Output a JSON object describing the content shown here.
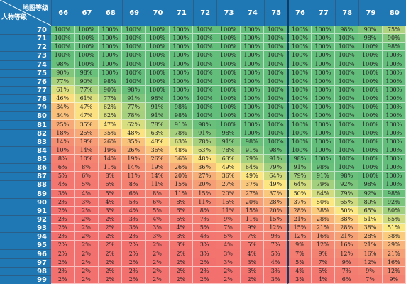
{
  "corner": {
    "col_label": "地图等级",
    "row_label": "人物等级"
  },
  "columns": [
    "66",
    "67",
    "68",
    "69",
    "70",
    "71",
    "72",
    "73",
    "74",
    "75",
    "76",
    "77",
    "78",
    "79",
    "80"
  ],
  "rows": [
    {
      "level": "70",
      "values": [
        "100%",
        "100%",
        "100%",
        "100%",
        "100%",
        "100%",
        "100%",
        "100%",
        "100%",
        "100%",
        "100%",
        "100%",
        "98%",
        "90%",
        "75%"
      ]
    },
    {
      "level": "71",
      "values": [
        "100%",
        "100%",
        "100%",
        "100%",
        "100%",
        "100%",
        "100%",
        "100%",
        "100%",
        "100%",
        "100%",
        "100%",
        "100%",
        "98%",
        "90%"
      ]
    },
    {
      "level": "72",
      "values": [
        "100%",
        "100%",
        "100%",
        "100%",
        "100%",
        "100%",
        "100%",
        "100%",
        "100%",
        "100%",
        "100%",
        "100%",
        "100%",
        "100%",
        "98%"
      ]
    },
    {
      "level": "73",
      "values": [
        "100%",
        "100%",
        "100%",
        "100%",
        "100%",
        "100%",
        "100%",
        "100%",
        "100%",
        "100%",
        "100%",
        "100%",
        "100%",
        "100%",
        "100%"
      ]
    },
    {
      "level": "74",
      "values": [
        "98%",
        "100%",
        "100%",
        "100%",
        "100%",
        "100%",
        "100%",
        "100%",
        "100%",
        "100%",
        "100%",
        "100%",
        "100%",
        "100%",
        "100%"
      ]
    },
    {
      "level": "75",
      "values": [
        "90%",
        "98%",
        "100%",
        "100%",
        "100%",
        "100%",
        "100%",
        "100%",
        "100%",
        "100%",
        "100%",
        "100%",
        "100%",
        "100%",
        "100%"
      ]
    },
    {
      "level": "76",
      "values": [
        "77%",
        "90%",
        "98%",
        "100%",
        "100%",
        "100%",
        "100%",
        "100%",
        "100%",
        "100%",
        "100%",
        "100%",
        "100%",
        "100%",
        "100%"
      ]
    },
    {
      "level": "77",
      "values": [
        "61%",
        "77%",
        "90%",
        "98%",
        "100%",
        "100%",
        "100%",
        "100%",
        "100%",
        "100%",
        "100%",
        "100%",
        "100%",
        "100%",
        "100%"
      ]
    },
    {
      "level": "78",
      "values": [
        "46%",
        "61%",
        "77%",
        "91%",
        "98%",
        "100%",
        "100%",
        "100%",
        "100%",
        "100%",
        "100%",
        "100%",
        "100%",
        "100%",
        "100%"
      ]
    },
    {
      "level": "79",
      "values": [
        "34%",
        "47%",
        "62%",
        "77%",
        "91%",
        "98%",
        "100%",
        "100%",
        "100%",
        "100%",
        "100%",
        "100%",
        "100%",
        "100%",
        "100%"
      ]
    },
    {
      "level": "80",
      "values": [
        "34%",
        "47%",
        "62%",
        "78%",
        "91%",
        "98%",
        "100%",
        "100%",
        "100%",
        "100%",
        "100%",
        "100%",
        "100%",
        "100%",
        "100%"
      ]
    },
    {
      "level": "81",
      "values": [
        "25%",
        "35%",
        "47%",
        "62%",
        "78%",
        "91%",
        "98%",
        "100%",
        "100%",
        "100%",
        "100%",
        "100%",
        "100%",
        "100%",
        "100%"
      ]
    },
    {
      "level": "82",
      "values": [
        "18%",
        "25%",
        "35%",
        "48%",
        "63%",
        "78%",
        "91%",
        "98%",
        "100%",
        "100%",
        "100%",
        "100%",
        "100%",
        "100%",
        "100%"
      ]
    },
    {
      "level": "83",
      "values": [
        "14%",
        "19%",
        "26%",
        "35%",
        "48%",
        "63%",
        "78%",
        "91%",
        "98%",
        "100%",
        "100%",
        "100%",
        "100%",
        "100%",
        "100%"
      ]
    },
    {
      "level": "84",
      "values": [
        "10%",
        "14%",
        "19%",
        "26%",
        "36%",
        "48%",
        "63%",
        "78%",
        "91%",
        "98%",
        "100%",
        "100%",
        "100%",
        "100%",
        "100%"
      ]
    },
    {
      "level": "85",
      "values": [
        "8%",
        "10%",
        "14%",
        "19%",
        "26%",
        "36%",
        "48%",
        "63%",
        "79%",
        "91%",
        "98%",
        "100%",
        "100%",
        "100%",
        "100%"
      ]
    },
    {
      "level": "86",
      "values": [
        "6%",
        "8%",
        "11%",
        "14%",
        "19%",
        "26%",
        "36%",
        "49%",
        "64%",
        "79%",
        "91%",
        "98%",
        "100%",
        "100%",
        "100%"
      ]
    },
    {
      "level": "87",
      "values": [
        "5%",
        "6%",
        "8%",
        "11%",
        "14%",
        "20%",
        "27%",
        "36%",
        "49%",
        "64%",
        "79%",
        "91%",
        "98%",
        "100%",
        "100%"
      ]
    },
    {
      "level": "88",
      "values": [
        "4%",
        "5%",
        "6%",
        "8%",
        "11%",
        "15%",
        "20%",
        "27%",
        "37%",
        "49%",
        "64%",
        "79%",
        "92%",
        "98%",
        "100%"
      ]
    },
    {
      "level": "89",
      "values": [
        "3%",
        "4%",
        "5%",
        "6%",
        "8%",
        "11%",
        "15%",
        "20%",
        "27%",
        "37%",
        "50%",
        "64%",
        "79%",
        "92%",
        "98%"
      ]
    },
    {
      "level": "90",
      "values": [
        "2%",
        "3%",
        "4%",
        "5%",
        "6%",
        "8%",
        "11%",
        "15%",
        "20%",
        "28%",
        "37%",
        "50%",
        "65%",
        "80%",
        "92%"
      ]
    },
    {
      "level": "91",
      "values": [
        "2%",
        "2%",
        "3%",
        "4%",
        "5%",
        "6%",
        "8%",
        "11%",
        "15%",
        "20%",
        "28%",
        "38%",
        "50%",
        "65%",
        "80%"
      ]
    },
    {
      "level": "92",
      "values": [
        "2%",
        "2%",
        "2%",
        "3%",
        "4%",
        "5%",
        "7%",
        "9%",
        "11%",
        "15%",
        "21%",
        "28%",
        "38%",
        "51%",
        "65%"
      ]
    },
    {
      "level": "93",
      "values": [
        "2%",
        "2%",
        "2%",
        "3%",
        "3%",
        "4%",
        "5%",
        "7%",
        "9%",
        "12%",
        "15%",
        "21%",
        "28%",
        "38%",
        "51%"
      ]
    },
    {
      "level": "94",
      "values": [
        "2%",
        "2%",
        "2%",
        "2%",
        "3%",
        "3%",
        "4%",
        "5%",
        "7%",
        "9%",
        "12%",
        "16%",
        "21%",
        "28%",
        "38%"
      ]
    },
    {
      "level": "95",
      "values": [
        "2%",
        "2%",
        "2%",
        "2%",
        "2%",
        "3%",
        "3%",
        "4%",
        "5%",
        "7%",
        "9%",
        "12%",
        "16%",
        "21%",
        "29%"
      ]
    },
    {
      "level": "96",
      "values": [
        "2%",
        "2%",
        "2%",
        "2%",
        "2%",
        "2%",
        "3%",
        "3%",
        "4%",
        "5%",
        "7%",
        "9%",
        "12%",
        "16%",
        "21%"
      ]
    },
    {
      "level": "97",
      "values": [
        "2%",
        "2%",
        "2%",
        "2%",
        "2%",
        "2%",
        "2%",
        "3%",
        "3%",
        "4%",
        "5%",
        "7%",
        "9%",
        "12%",
        "16%"
      ]
    },
    {
      "level": "98",
      "values": [
        "2%",
        "2%",
        "2%",
        "2%",
        "2%",
        "2%",
        "2%",
        "2%",
        "3%",
        "3%",
        "4%",
        "5%",
        "7%",
        "9%",
        "12%"
      ]
    },
    {
      "level": "99",
      "values": [
        "2%",
        "2%",
        "2%",
        "2%",
        "2%",
        "2%",
        "2%",
        "2%",
        "2%",
        "3%",
        "3%",
        "4%",
        "6%",
        "7%",
        "9%"
      ]
    }
  ]
}
